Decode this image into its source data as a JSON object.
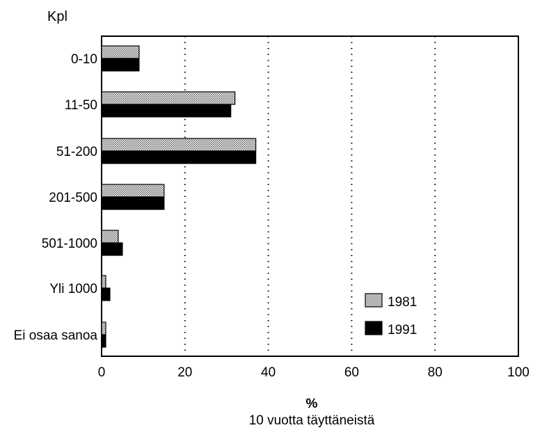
{
  "chart_data": {
    "type": "bar",
    "orientation": "horizontal",
    "y_axis_title": "Kpl",
    "categories": [
      "0-10",
      "11-50",
      "51-200",
      "201-500",
      "501-1000",
      "Yli 1000",
      "Ei osaa sanoa"
    ],
    "series": [
      {
        "name": "1981",
        "values": [
          9,
          32,
          37,
          15,
          4,
          1,
          1
        ],
        "fill": "dotted-gray"
      },
      {
        "name": "1991",
        "values": [
          9,
          31,
          37,
          15,
          5,
          2,
          1
        ],
        "fill": "#000000"
      }
    ],
    "xlim": [
      0,
      100
    ],
    "x_ticks": [
      "0",
      "20",
      "40",
      "60",
      "80",
      "100"
    ],
    "x_unit": "%",
    "x_label": "10 vuotta täyttäneistä",
    "grid": "vertical dotted at 20, 40, 60, 80",
    "legend_position": "bottom-right"
  }
}
